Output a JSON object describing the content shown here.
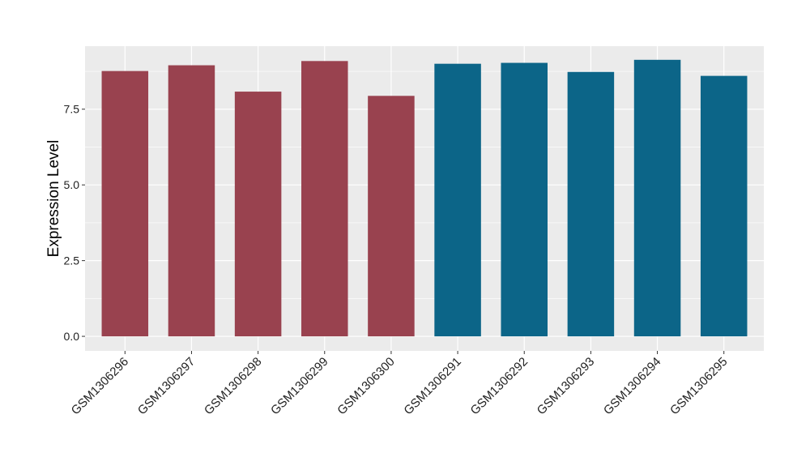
{
  "chart_data": {
    "type": "bar",
    "title": "",
    "xlabel": "",
    "ylabel": "Expression Level",
    "categories": [
      "GSM1306296",
      "GSM1306297",
      "GSM1306298",
      "GSM1306299",
      "GSM1306300",
      "GSM1306291",
      "GSM1306292",
      "GSM1306293",
      "GSM1306294",
      "GSM1306295"
    ],
    "values": [
      8.76,
      8.95,
      8.08,
      9.09,
      7.94,
      9.0,
      9.03,
      8.73,
      9.13,
      8.6
    ],
    "bar_colors": [
      "#99424f",
      "#99424f",
      "#99424f",
      "#99424f",
      "#99424f",
      "#0c6588",
      "#0c6588",
      "#0c6588",
      "#0c6588",
      "#0c6588"
    ],
    "y_ticks": [
      0,
      2.5,
      5,
      7.5
    ],
    "y_tick_labels": [
      "0.0",
      "2.5",
      "5.0",
      "7.5"
    ],
    "ylim": [
      -0.48,
      9.58
    ],
    "grid": true,
    "legend": "none",
    "colors": {
      "panel": "#ebebeb",
      "grid": "#ffffff",
      "group_a": "#99424f",
      "group_b": "#0c6588"
    }
  }
}
